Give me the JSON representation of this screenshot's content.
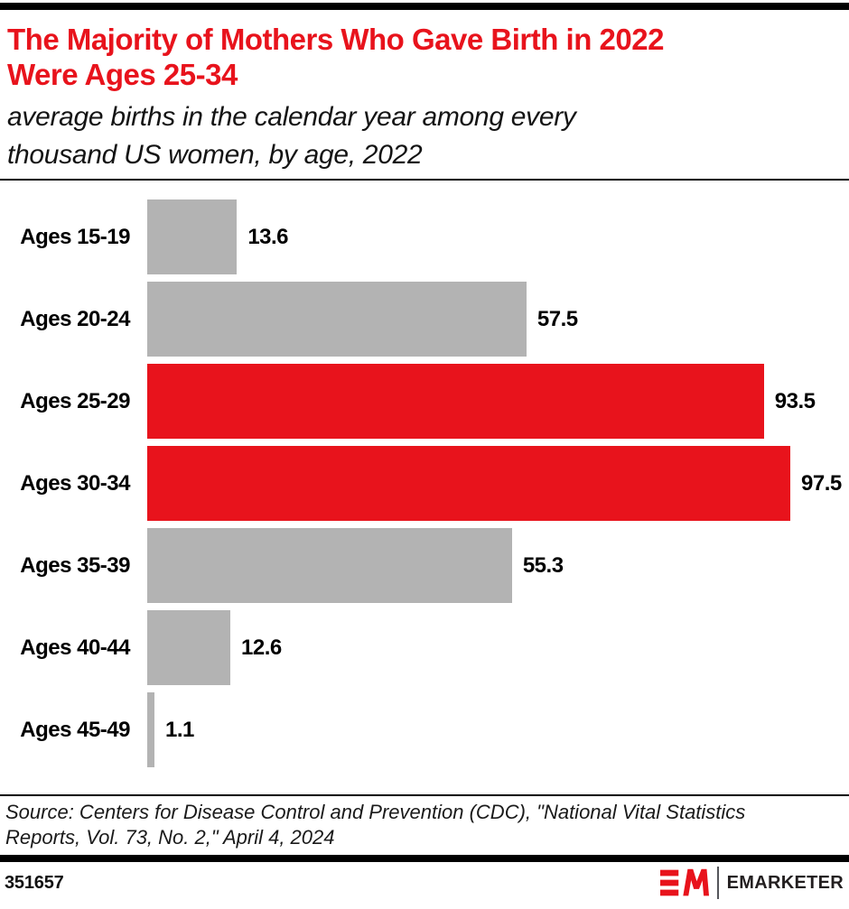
{
  "header": {
    "title": "The Majority of Mothers Who Gave Birth in 2022 Were Ages 25-34",
    "title_lines": [
      "The Majority of Mothers Who Gave Birth in 2022",
      "Were Ages 25-34"
    ],
    "subtitle": "average births in the calendar year among every thousand US women, by age, 2022",
    "subtitle_lines": [
      "average births in the calendar year among every",
      "thousand US women, by age, 2022"
    ]
  },
  "chart_data": {
    "type": "bar",
    "orientation": "horizontal",
    "title": "The Majority of Mothers Who Gave Birth in 2022 Were Ages 25-34",
    "subtitle": "average births in the calendar year among every thousand US women, by age, 2022",
    "categories": [
      "Ages 15-19",
      "Ages 20-24",
      "Ages 25-29",
      "Ages 30-34",
      "Ages 35-39",
      "Ages 40-44",
      "Ages 45-49"
    ],
    "values": [
      13.6,
      57.5,
      93.5,
      97.5,
      55.3,
      12.6,
      1.1
    ],
    "bar_colors": [
      "#b3b3b3",
      "#b3b3b3",
      "#e8131c",
      "#e8131c",
      "#b3b3b3",
      "#b3b3b3",
      "#b3b3b3"
    ],
    "highlight_color": "#e8131c",
    "default_color": "#b3b3b3",
    "xlabel": "",
    "ylabel": "",
    "xlim": [
      0,
      100
    ],
    "grid": false,
    "axis_hidden": true,
    "data_labels": true,
    "legend": "none"
  },
  "source": {
    "text": "Source: Centers for Disease Control and Prevention (CDC), \"National Vital Statistics Reports, Vol. 73, No. 2,\" April 4, 2024",
    "lines": [
      "Source: Centers for Disease Control and Prevention (CDC), \"National Vital Statistics",
      "Reports, Vol. 73, No. 2,\" April 4, 2024"
    ]
  },
  "footer": {
    "chart_id": "351657",
    "brand": "EMARKETER"
  },
  "colors": {
    "accent_red": "#e8131c",
    "bar_gray": "#b3b3b3",
    "text_black": "#1a1a1a",
    "rule_black": "#000000"
  }
}
